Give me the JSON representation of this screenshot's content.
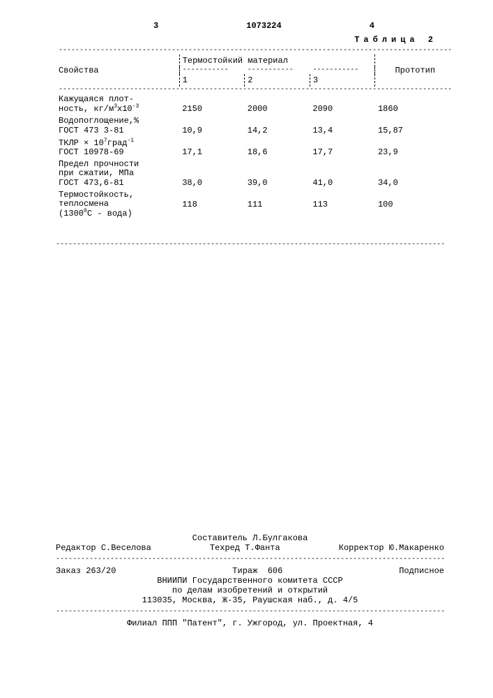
{
  "header": {
    "left_page_num": "3",
    "doc_number": "1073224",
    "right_page_num": "4"
  },
  "table_caption": "Таблица 2",
  "table": {
    "header": {
      "properties": "Свойства",
      "thermo_material": "Термостойкий материал",
      "col1": "1",
      "col2": "2",
      "col3": "3",
      "prototype": "Прототип"
    },
    "rows": [
      {
        "label": "Кажущаяся плот-\nность, кг/м³x10⁻³",
        "v1": "2150",
        "v2": "2000",
        "v3": "2090",
        "proto": "1860"
      },
      {
        "label": "Водопоглощение,%\nГОСТ 473 3-81",
        "v1": "10,9",
        "v2": "14,2",
        "v3": "13,4",
        "proto": "15,87"
      },
      {
        "label": "ТКЛР × 10⁷град⁻¹\nГОСТ 10978-69",
        "v1": "17,1",
        "v2": "18,6",
        "v3": "17,7",
        "proto": "23,9"
      },
      {
        "label": "Предел прочности\nпри сжатии, МПа\nГОСТ 473,6-81",
        "v1": "38,0",
        "v2": "39,0",
        "v3": "41,0",
        "proto": "34,0"
      },
      {
        "label": "Термостойкость,\nтеплосмена\n(1300⁰С - вода)",
        "v1": "118",
        "v2": "111",
        "v3": "113",
        "proto": "100"
      }
    ]
  },
  "footer": {
    "compiler_label": "Составитель",
    "compiler": "Л.Булгакова",
    "editor_label": "Редактор",
    "editor": "С.Веселова",
    "techred_label": "Техред",
    "techred": "Т.Фанта",
    "corrector_label": "Корректор",
    "corrector": "Ю.Макаренко",
    "order_label": "Заказ",
    "order": "263/20",
    "tirazh_label": "Тираж",
    "tirazh": "606",
    "podpisnoe": "Подписное",
    "org1": "ВНИИПИ Государственного комитета СССР",
    "org2": "по делам изобретений и открытий",
    "addr1": "113035, Москва, Ж-35, Раушская наб., д. 4/5",
    "addr2": "Филиал ППП \"Патент\", г. Ужгород, ул. Проектная, 4"
  },
  "dashes": {
    "long": "----------------------------------------------------------------------------------------------",
    "short_prop": "-----------------------",
    "short_v": "-----------",
    "short_proto": "----------------"
  }
}
